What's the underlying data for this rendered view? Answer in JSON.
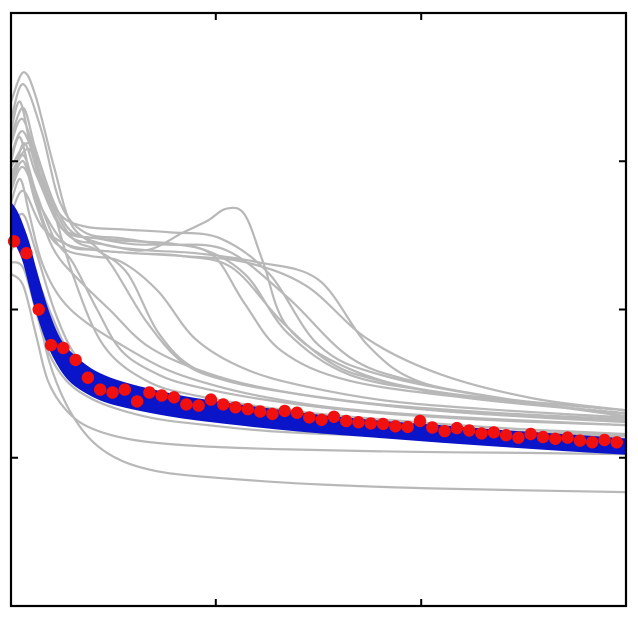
{
  "chart_data": {
    "type": "line",
    "title": "",
    "xlabel": "",
    "ylabel": "",
    "xlim": [
      0,
      100
    ],
    "ylim": [
      0,
      100
    ],
    "grid": false,
    "legend": "none",
    "x_ticks": [
      33.3,
      66.7
    ],
    "y_ticks": [
      25,
      50,
      75
    ],
    "colors": {
      "gray": "#b8b8b8",
      "blue": "#0a14c8",
      "red": "#f01010",
      "axes": "#000000"
    },
    "series": [
      {
        "style": "gray-ensemble",
        "curves": [
          {
            "x": [
              0,
              3,
              6,
              10,
              15,
              22,
              30,
              45,
              60,
              80,
              100
            ],
            "y": [
              74,
              78,
              70,
              56,
              44,
              38,
              35.5,
              33,
              31.5,
              30,
              29
            ]
          },
          {
            "x": [
              0,
              2,
              4,
              7,
              10,
              15,
              22,
              30,
              40,
              50,
              58,
              66,
              80,
              100
            ],
            "y": [
              85,
              90,
              86,
              74,
              64,
              61,
              60,
              59.5,
              58,
              55,
              44,
              38,
              35,
              32
            ]
          },
          {
            "x": [
              0,
              2,
              5,
              8,
              12,
              18,
              25,
              35,
              45,
              55,
              65,
              80,
              100
            ],
            "y": [
              82,
              88,
              80,
              68,
              63,
              62,
              61,
              60,
              52,
              42,
              38,
              35,
              32
            ]
          },
          {
            "x": [
              0,
              1.5,
              3.5,
              6,
              9,
              14,
              20,
              30,
              38,
              45,
              55,
              70,
              85,
              100
            ],
            "y": [
              80,
              85,
              76,
              68,
              63,
              62,
              61,
              60.5,
              56,
              46,
              39,
              36,
              34,
              32.5
            ]
          },
          {
            "x": [
              0,
              2,
              4,
              7,
              10,
              15,
              22,
              28,
              32,
              35,
              38,
              41,
              45,
              55,
              70,
              100
            ],
            "y": [
              70,
              78,
              73,
              66,
              62,
              61,
              60,
              63,
              65,
              67,
              66,
              58,
              47,
              40,
              36,
              33
            ]
          },
          {
            "x": [
              0,
              2,
              4,
              7,
              10,
              14,
              18,
              24,
              30,
              40,
              55,
              75,
              100
            ],
            "y": [
              72,
              76,
              70,
              62,
              58,
              50,
              43,
              39,
              37,
              35,
              33,
              31.5,
              30.5
            ]
          },
          {
            "x": [
              0,
              2,
              5,
              8,
              12,
              16,
              22,
              28,
              35,
              45,
              60,
              80,
              100
            ],
            "y": [
              78,
              82,
              72,
              64,
              62,
              58,
              48,
              41,
              38,
              36,
              34,
              32.5,
              31.5
            ]
          },
          {
            "x": [
              0,
              2,
              4,
              7,
              10,
              14,
              20,
              30,
              45,
              60,
              80,
              100
            ],
            "y": [
              64,
              66,
              60,
              50,
              43,
              38,
              35,
              33,
              31.5,
              30.5,
              29.5,
              28.8
            ]
          },
          {
            "x": [
              0,
              2,
              5,
              8,
              12,
              18,
              26,
              34,
              42,
              50,
              60,
              80,
              100
            ],
            "y": [
              76,
              80,
              72,
              66,
              64,
              63.5,
              63,
              62,
              56,
              44,
              39,
              35,
              33
            ]
          },
          {
            "x": [
              0,
              3,
              6,
              10,
              14,
              19,
              24,
              30,
              40,
              55,
              75,
              100
            ],
            "y": [
              73,
              77,
              69,
              62,
              60,
              56,
              46,
              40,
              37,
              34.5,
              32.5,
              31
            ]
          },
          {
            "x": [
              0,
              1.5,
              3,
              5,
              8,
              12,
              18,
              25,
              32,
              40,
              52,
              70,
              100
            ],
            "y": [
              68,
              72,
              66,
              58,
              52,
              48,
              44,
              40,
              37.5,
              35.5,
              33.5,
              32,
              30.5
            ]
          },
          {
            "x": [
              0,
              2,
              4,
              7,
              10,
              14,
              20,
              27,
              33,
              38,
              44,
              55,
              75,
              100
            ],
            "y": [
              79,
              84,
              77,
              68,
              63,
              62,
              61.5,
              61,
              59,
              51,
              43,
              38,
              35,
              32.5
            ]
          },
          {
            "x": [
              0,
              2,
              5,
              9,
              14,
              20,
              28,
              36,
              44,
              52,
              60,
              75,
              100
            ],
            "y": [
              70,
              74,
              67,
              61,
              60,
              59.5,
              59,
              57,
              48,
              41,
              38,
              35,
              32.5
            ]
          },
          {
            "x": [
              0,
              2,
              4,
              7,
              10,
              15,
              22,
              30,
              40,
              55,
              75,
              100
            ],
            "y": [
              60,
              62,
              56,
              48,
              42,
              38,
              35.5,
              33.5,
              32,
              30.5,
              29.5,
              28.6
            ]
          },
          {
            "x": [
              0,
              1.5,
              3.5,
              6,
              9,
              13,
              18,
              24,
              30,
              38,
              48,
              62,
              80,
              100
            ],
            "y": [
              75,
              79,
              71,
              63,
              60,
              59,
              58,
              53,
              45,
              40,
              37,
              34.5,
              33,
              31.8
            ]
          },
          {
            "x": [
              0,
              2,
              4,
              6,
              9,
              13,
              18,
              24,
              32,
              42,
              56,
              75,
              100
            ],
            "y": [
              58,
              57,
              50,
              43,
              38,
              35,
              33,
              31.5,
              30.5,
              29.5,
              28.8,
              28.2,
              27.8
            ]
          },
          {
            "x": [
              0,
              2,
              4,
              6,
              9,
              13,
              20,
              30,
              45,
              65,
              85,
              100
            ],
            "y": [
              56,
              54,
              46,
              38,
              33,
              30,
              28,
              27,
              26.4,
              26,
              25.8,
              25.6
            ]
          },
          {
            "x": [
              0,
              2,
              4,
              6,
              9,
              13,
              18,
              25,
              35,
              50,
              70,
              100
            ],
            "y": [
              62,
              60,
              52,
              42,
              34,
              28,
              24.5,
              22.5,
              21.5,
              20.5,
              19.8,
              19.2
            ]
          },
          {
            "x": [
              0,
              2,
              5,
              9,
              14,
              20,
              28,
              38,
              48,
              58,
              70,
              85,
              100
            ],
            "y": [
              66,
              70,
              64,
              61,
              60,
              59.5,
              59,
              58,
              54,
              45,
              39,
              35,
              33
            ]
          },
          {
            "x": [
              0,
              2,
              4,
              7,
              11,
              16,
              22,
              30,
              40,
              55,
              75,
              100
            ],
            "y": [
              71,
              75,
              68,
              60,
              55,
              50,
              44,
              40,
              37,
              34.5,
              32.5,
              31.2
            ]
          }
        ]
      },
      {
        "style": "blue-band",
        "x": [
          0,
          1,
          2,
          3,
          4,
          6,
          8,
          10,
          13,
          16,
          20,
          25,
          30,
          40,
          50,
          60,
          70,
          80,
          90,
          100
        ],
        "y_upper": [
          68,
          66.5,
          64,
          61,
          57,
          50,
          45,
          42.5,
          40,
          38.5,
          37.2,
          36,
          35,
          33.5,
          32.2,
          31.2,
          30.4,
          29.6,
          28.9,
          28.2
        ],
        "y_lower": [
          62,
          60.5,
          58,
          54,
          50,
          44,
          40,
          37.5,
          35.5,
          34.2,
          33.2,
          32.2,
          31.4,
          30.2,
          29.2,
          28.4,
          27.6,
          26.9,
          26.2,
          25.6
        ]
      },
      {
        "style": "red-points",
        "x": [
          0.5,
          2.5,
          4.5,
          6.5,
          8.5,
          10.5,
          12.5,
          14.5,
          16.5,
          18.5,
          20.5,
          22.5,
          24.5,
          26.5,
          28.5,
          30.5,
          32.5,
          34.5,
          36.5,
          38.5,
          40.5,
          42.5,
          44.5,
          46.5,
          48.5,
          50.5,
          52.5,
          54.5,
          56.5,
          58.5,
          60.5,
          62.5,
          64.5,
          66.5,
          68.5,
          70.5,
          72.5,
          74.5,
          76.5,
          78.5,
          80.5,
          82.5,
          84.5,
          86.5,
          88.5,
          90.5,
          92.5,
          94.5,
          96.5,
          98.5
        ],
        "y": [
          61.5,
          59.5,
          50,
          44,
          43.5,
          41.5,
          38.5,
          36.5,
          36,
          36.5,
          34.5,
          36,
          35.5,
          35.2,
          34,
          33.8,
          34.8,
          34,
          33.5,
          33.2,
          32.8,
          32.4,
          32.9,
          32.6,
          31.8,
          31.4,
          31.9,
          31.2,
          31,
          30.8,
          30.7,
          30.3,
          30.2,
          31.2,
          30.1,
          29.5,
          30,
          29.6,
          29.1,
          29.3,
          28.8,
          28.4,
          29,
          28.5,
          28.2,
          28.4,
          27.9,
          27.6,
          28,
          27.6
        ]
      }
    ]
  }
}
